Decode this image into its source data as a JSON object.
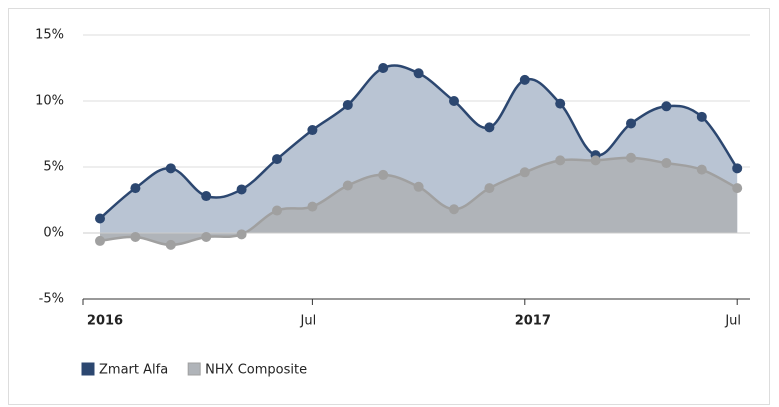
{
  "chart_data": {
    "type": "area",
    "categories": [
      "2016",
      null,
      null,
      null,
      null,
      null,
      "Jul",
      null,
      null,
      null,
      null,
      null,
      "2017",
      null,
      null,
      null,
      null,
      null,
      "Jul"
    ],
    "series": [
      {
        "name": "Zmart Alfa",
        "color": "#2c4770",
        "fill": "#b9c4d3",
        "values": [
          1.1,
          3.4,
          4.9,
          2.8,
          3.3,
          5.6,
          7.8,
          9.7,
          12.5,
          12.1,
          10.0,
          8.0,
          11.6,
          9.8,
          5.9,
          8.3,
          9.6,
          8.8,
          4.9
        ]
      },
      {
        "name": "NHX Composite",
        "color": "#a0a0a0",
        "fill": "#b0b4b9",
        "values": [
          -0.6,
          -0.3,
          -0.9,
          -0.3,
          -0.1,
          1.7,
          2.0,
          3.6,
          4.4,
          3.5,
          1.8,
          3.4,
          4.6,
          5.5,
          5.5,
          5.7,
          5.3,
          4.8,
          3.4
        ]
      }
    ],
    "ylim": [
      -5,
      15
    ],
    "yticks": [
      {
        "value": -5,
        "label": "-5%"
      },
      {
        "value": 0,
        "label": "0%"
      },
      {
        "value": 5,
        "label": "5%"
      },
      {
        "value": 10,
        "label": "10%"
      },
      {
        "value": 15,
        "label": "15%"
      }
    ],
    "grid": true,
    "legend": "bottom-left"
  }
}
